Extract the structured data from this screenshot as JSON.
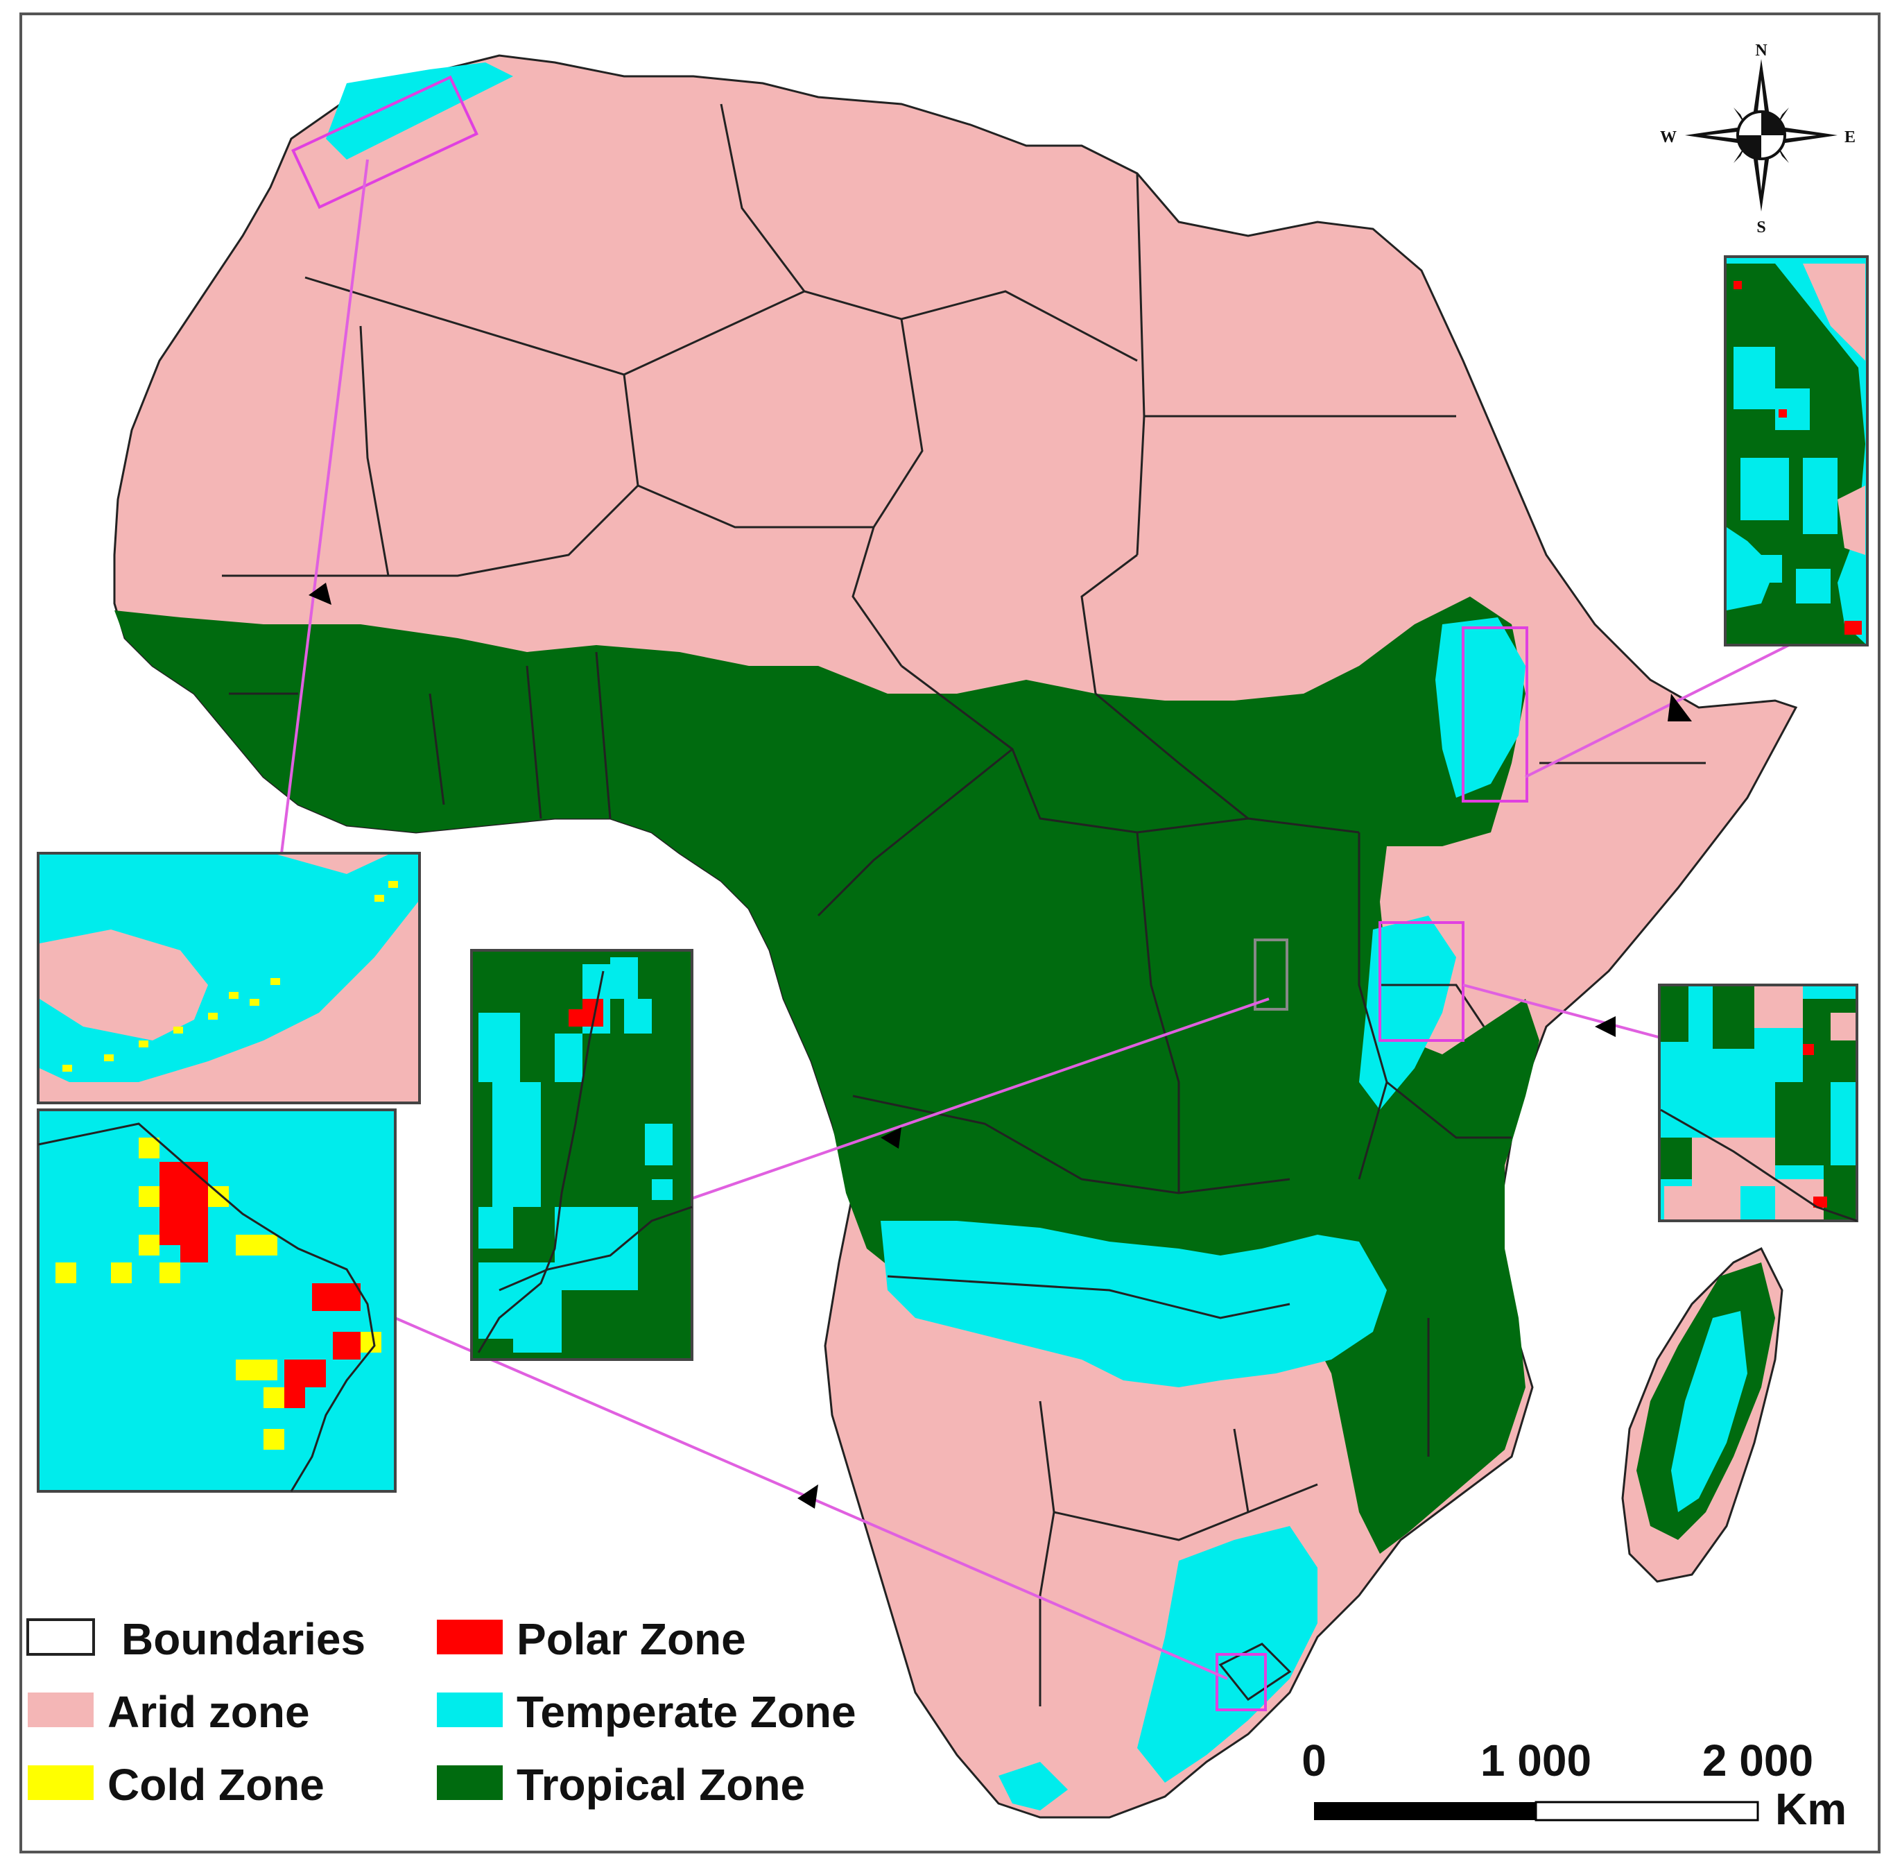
{
  "legend": {
    "items": [
      {
        "label": "Boundaries",
        "swatch": "#ffffff"
      },
      {
        "label": "Polar Zone",
        "swatch": "#ff0000"
      },
      {
        "label": "Arid zone",
        "swatch": "#f4b6b6"
      },
      {
        "label": "Temperate Zone",
        "swatch": "#00ecec"
      },
      {
        "label": "Cold Zone",
        "swatch": "#ffff00"
      },
      {
        "label": "Tropical Zone",
        "swatch": "#006b0f"
      }
    ]
  },
  "compass": {
    "n": "N",
    "s": "S",
    "e": "E",
    "w": "W"
  },
  "scalebar": {
    "ticks": [
      "0",
      "1 000",
      "2 000"
    ],
    "unit": "Km"
  },
  "colors": {
    "arid": "#f4b6b6",
    "temperate": "#00ecec",
    "tropical": "#006b0f",
    "cold": "#ffff00",
    "polar": "#ff0000",
    "boundary": "#222222",
    "inset_box": "#e040e0",
    "connector": "#e060e0"
  }
}
